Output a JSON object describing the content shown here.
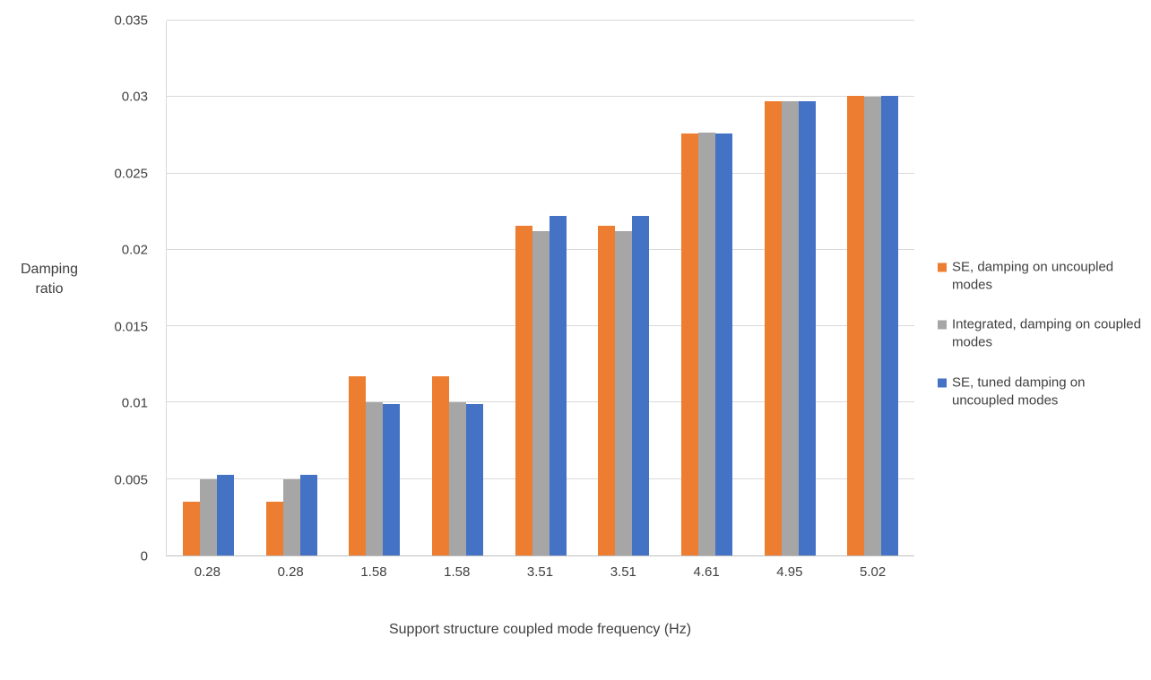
{
  "chart_data": {
    "type": "bar",
    "title": "",
    "categories": [
      "0.28",
      "0.28",
      "1.58",
      "1.58",
      "3.51",
      "3.51",
      "4.61",
      "4.95",
      "5.02"
    ],
    "series": [
      {
        "name": "SE, damping on uncoupled modes",
        "color": "#ED7D31",
        "values": [
          0.0035,
          0.0035,
          0.0117,
          0.0117,
          0.0216,
          0.0216,
          0.0276,
          0.0297,
          0.0301
        ]
      },
      {
        "name": "Integrated, damping on coupled modes",
        "color": "#A6A6A6",
        "values": [
          0.005,
          0.005,
          0.01,
          0.01,
          0.0212,
          0.0212,
          0.0277,
          0.0297,
          0.03
        ]
      },
      {
        "name": "SE, tuned damping on uncoupled modes",
        "color": "#4472C4",
        "values": [
          0.0053,
          0.0053,
          0.0099,
          0.0099,
          0.0222,
          0.0222,
          0.0276,
          0.0297,
          0.0301
        ]
      }
    ],
    "xlabel": "Support structure coupled mode frequency (Hz)",
    "ylabel": "Damping\nratio",
    "ylim": [
      0,
      0.035
    ],
    "yticks": [
      0,
      0.005,
      0.01,
      0.015,
      0.02,
      0.025,
      0.03,
      0.035
    ],
    "ytick_labels": [
      "0",
      "0.005",
      "0.01",
      "0.015",
      "0.02",
      "0.025",
      "0.03",
      "0.035"
    ],
    "grid": true,
    "legend_position": "right"
  }
}
